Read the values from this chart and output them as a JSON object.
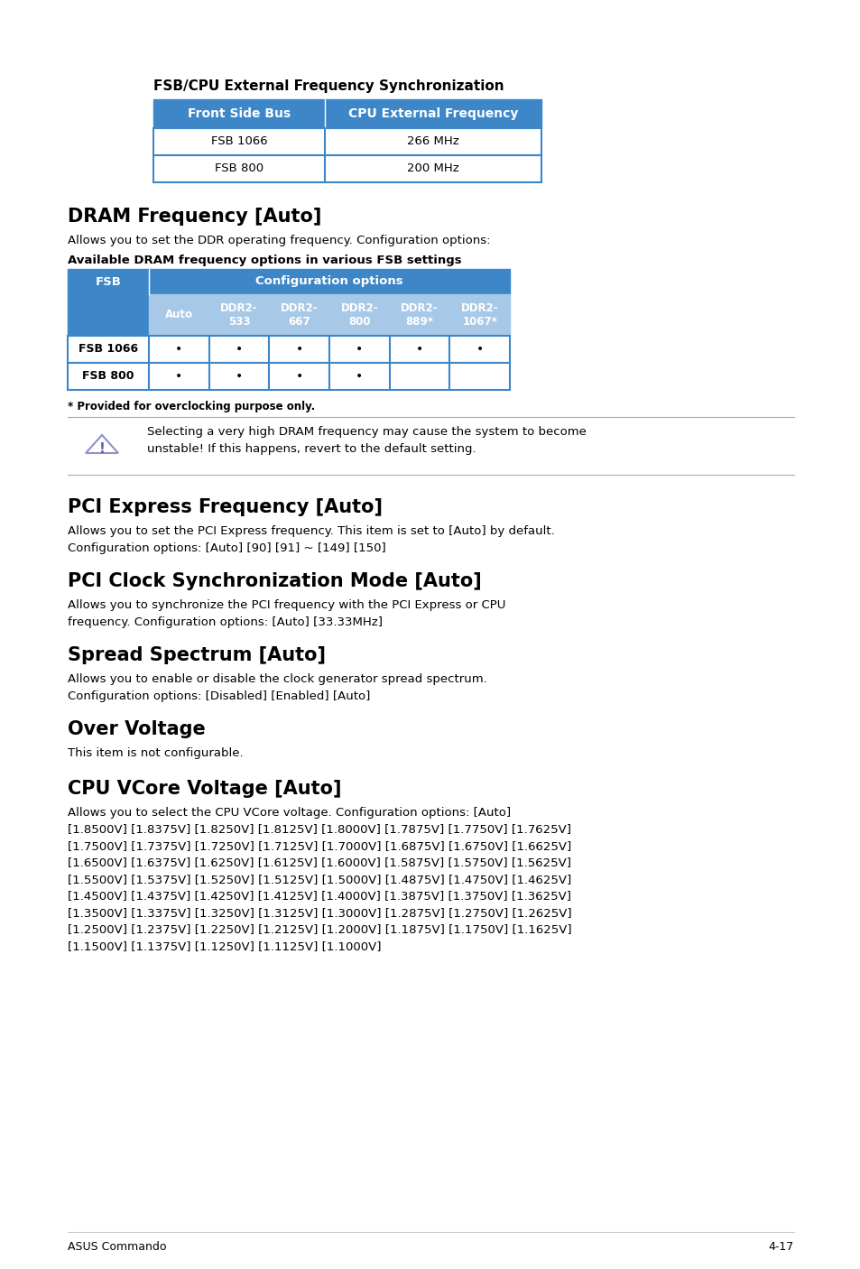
{
  "bg_color": "#ffffff",
  "text_color": "#000000",
  "blue_header": "#3d87c9",
  "light_blue": "#a8c8e8",
  "table1_title": "FSB/CPU External Frequency Synchronization",
  "table1_headers": [
    "Front Side Bus",
    "CPU External Frequency"
  ],
  "table1_rows": [
    [
      "FSB 1066",
      "266 MHz"
    ],
    [
      "FSB 800",
      "200 MHz"
    ]
  ],
  "section1_title": "DRAM Frequency [Auto]",
  "section1_body": "Allows you to set the DDR operating frequency. Configuration options:",
  "section1_sub": "Available DRAM frequency options in various FSB settings",
  "table2_col1": "FSB",
  "table2_span": "Configuration options",
  "table2_subheaders": [
    "Auto",
    "DDR2-\n533",
    "DDR2-\n667",
    "DDR2-\n800",
    "DDR2-\n889*",
    "DDR2-\n1067*"
  ],
  "table2_rows": [
    [
      "FSB 1066",
      true,
      true,
      true,
      true,
      true,
      true
    ],
    [
      "FSB 800",
      true,
      true,
      true,
      true,
      false,
      false
    ]
  ],
  "footnote": "* Provided for overclocking purpose only.",
  "warning_text": "Selecting a very high DRAM frequency may cause the system to become\nunstable! If this happens, revert to the default setting.",
  "section2_title": "PCI Express Frequency [Auto]",
  "section2_body": "Allows you to set the PCI Express frequency. This item is set to [Auto] by default.\nConfiguration options: [Auto] [90] [91] ~ [149] [150]",
  "section3_title": "PCI Clock Synchronization Mode [Auto]",
  "section3_body": "Allows you to synchronize the PCI frequency with the PCI Express or CPU\nfrequency. Configuration options: [Auto] [33.33MHz]",
  "section4_title": "Spread Spectrum [Auto]",
  "section4_body": "Allows you to enable or disable the clock generator spread spectrum.\nConfiguration options: [Disabled] [Enabled] [Auto]",
  "section5_title": "Over Voltage",
  "section5_body": "This item is not configurable.",
  "section6_title": "CPU VCore Voltage [Auto]",
  "section6_body": "Allows you to select the CPU VCore voltage. Configuration options: [Auto]\n[1.8500V] [1.8375V] [1.8250V] [1.8125V] [1.8000V] [1.7875V] [1.7750V] [1.7625V]\n[1.7500V] [1.7375V] [1.7250V] [1.7125V] [1.7000V] [1.6875V] [1.6750V] [1.6625V]\n[1.6500V] [1.6375V] [1.6250V] [1.6125V] [1.6000V] [1.5875V] [1.5750V] [1.5625V]\n[1.5500V] [1.5375V] [1.5250V] [1.5125V] [1.5000V] [1.4875V] [1.4750V] [1.4625V]\n[1.4500V] [1.4375V] [1.4250V] [1.4125V] [1.4000V] [1.3875V] [1.3750V] [1.3625V]\n[1.3500V] [1.3375V] [1.3250V] [1.3125V] [1.3000V] [1.2875V] [1.2750V] [1.2625V]\n[1.2500V] [1.2375V] [1.2250V] [1.2125V] [1.2000V] [1.1875V] [1.1750V] [1.1625V]\n[1.1500V] [1.1375V] [1.1250V] [1.1125V] [1.1000V]",
  "footer_left": "ASUS Commando",
  "footer_right": "4-17"
}
